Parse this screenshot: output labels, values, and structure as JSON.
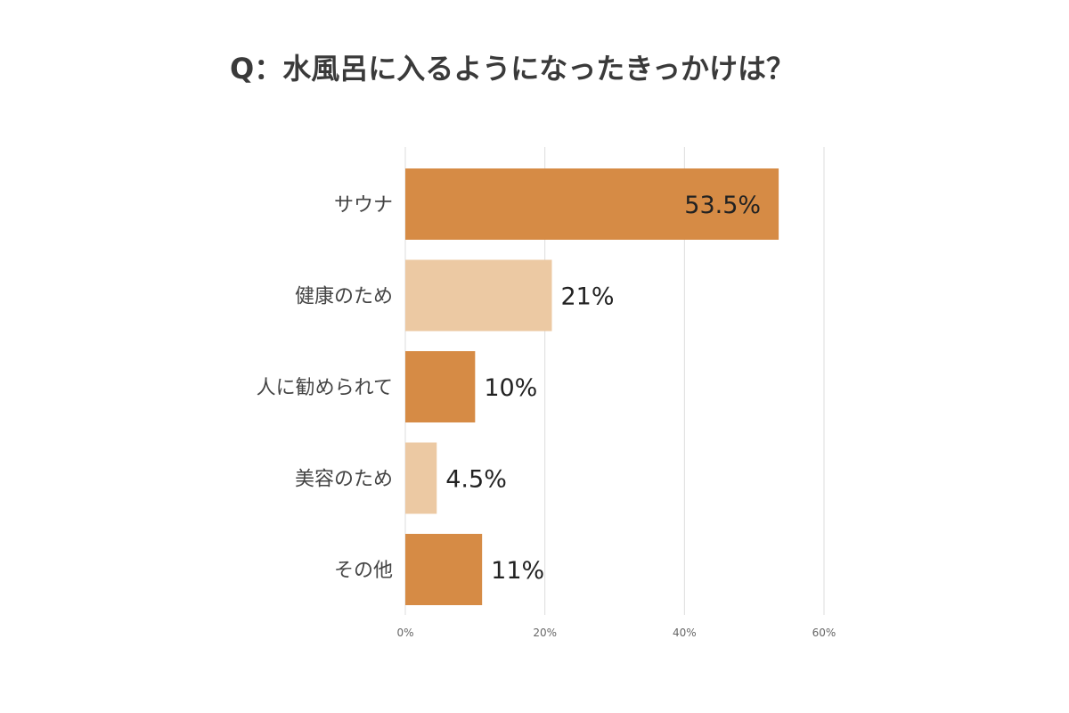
{
  "chart_data": {
    "type": "bar",
    "orientation": "horizontal",
    "title": "Q：水風呂に入るようになったきっかけは？",
    "categories": [
      "サウナ",
      "健康のため",
      "人に勧められて",
      "美容のため",
      "その他"
    ],
    "values": [
      53.5,
      21,
      10,
      4.5,
      11
    ],
    "value_labels": [
      "53.5%",
      "21%",
      "10%",
      "4.5%",
      "11%"
    ],
    "bar_colors": [
      "#d68b45",
      "#ecc9a3",
      "#d68b45",
      "#ecc9a3",
      "#d68b45"
    ],
    "xlim": [
      0,
      60
    ],
    "x_ticks": [
      0,
      20,
      40,
      60
    ],
    "x_tick_labels": [
      "0%",
      "20%",
      "40%",
      "60%"
    ],
    "grid": true,
    "legend": "none"
  }
}
